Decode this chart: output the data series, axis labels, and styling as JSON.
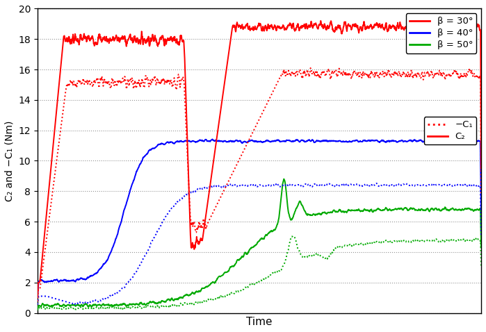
{
  "title": "",
  "xlabel": "Time",
  "ylabel": "C₂ and −C₁ (Nm)",
  "ylim": [
    0,
    20
  ],
  "yticks": [
    0,
    2,
    4,
    6,
    8,
    10,
    12,
    14,
    16,
    18,
    20
  ],
  "colors": {
    "red": "#ff0000",
    "blue": "#0000ff",
    "green": "#00aa00"
  },
  "legend_entries": [
    "β = 30°",
    "β = 40°",
    "β = 50°",
    "−C₁",
    "C₂"
  ],
  "background_color": "#ffffff",
  "grid_color": "#888888"
}
